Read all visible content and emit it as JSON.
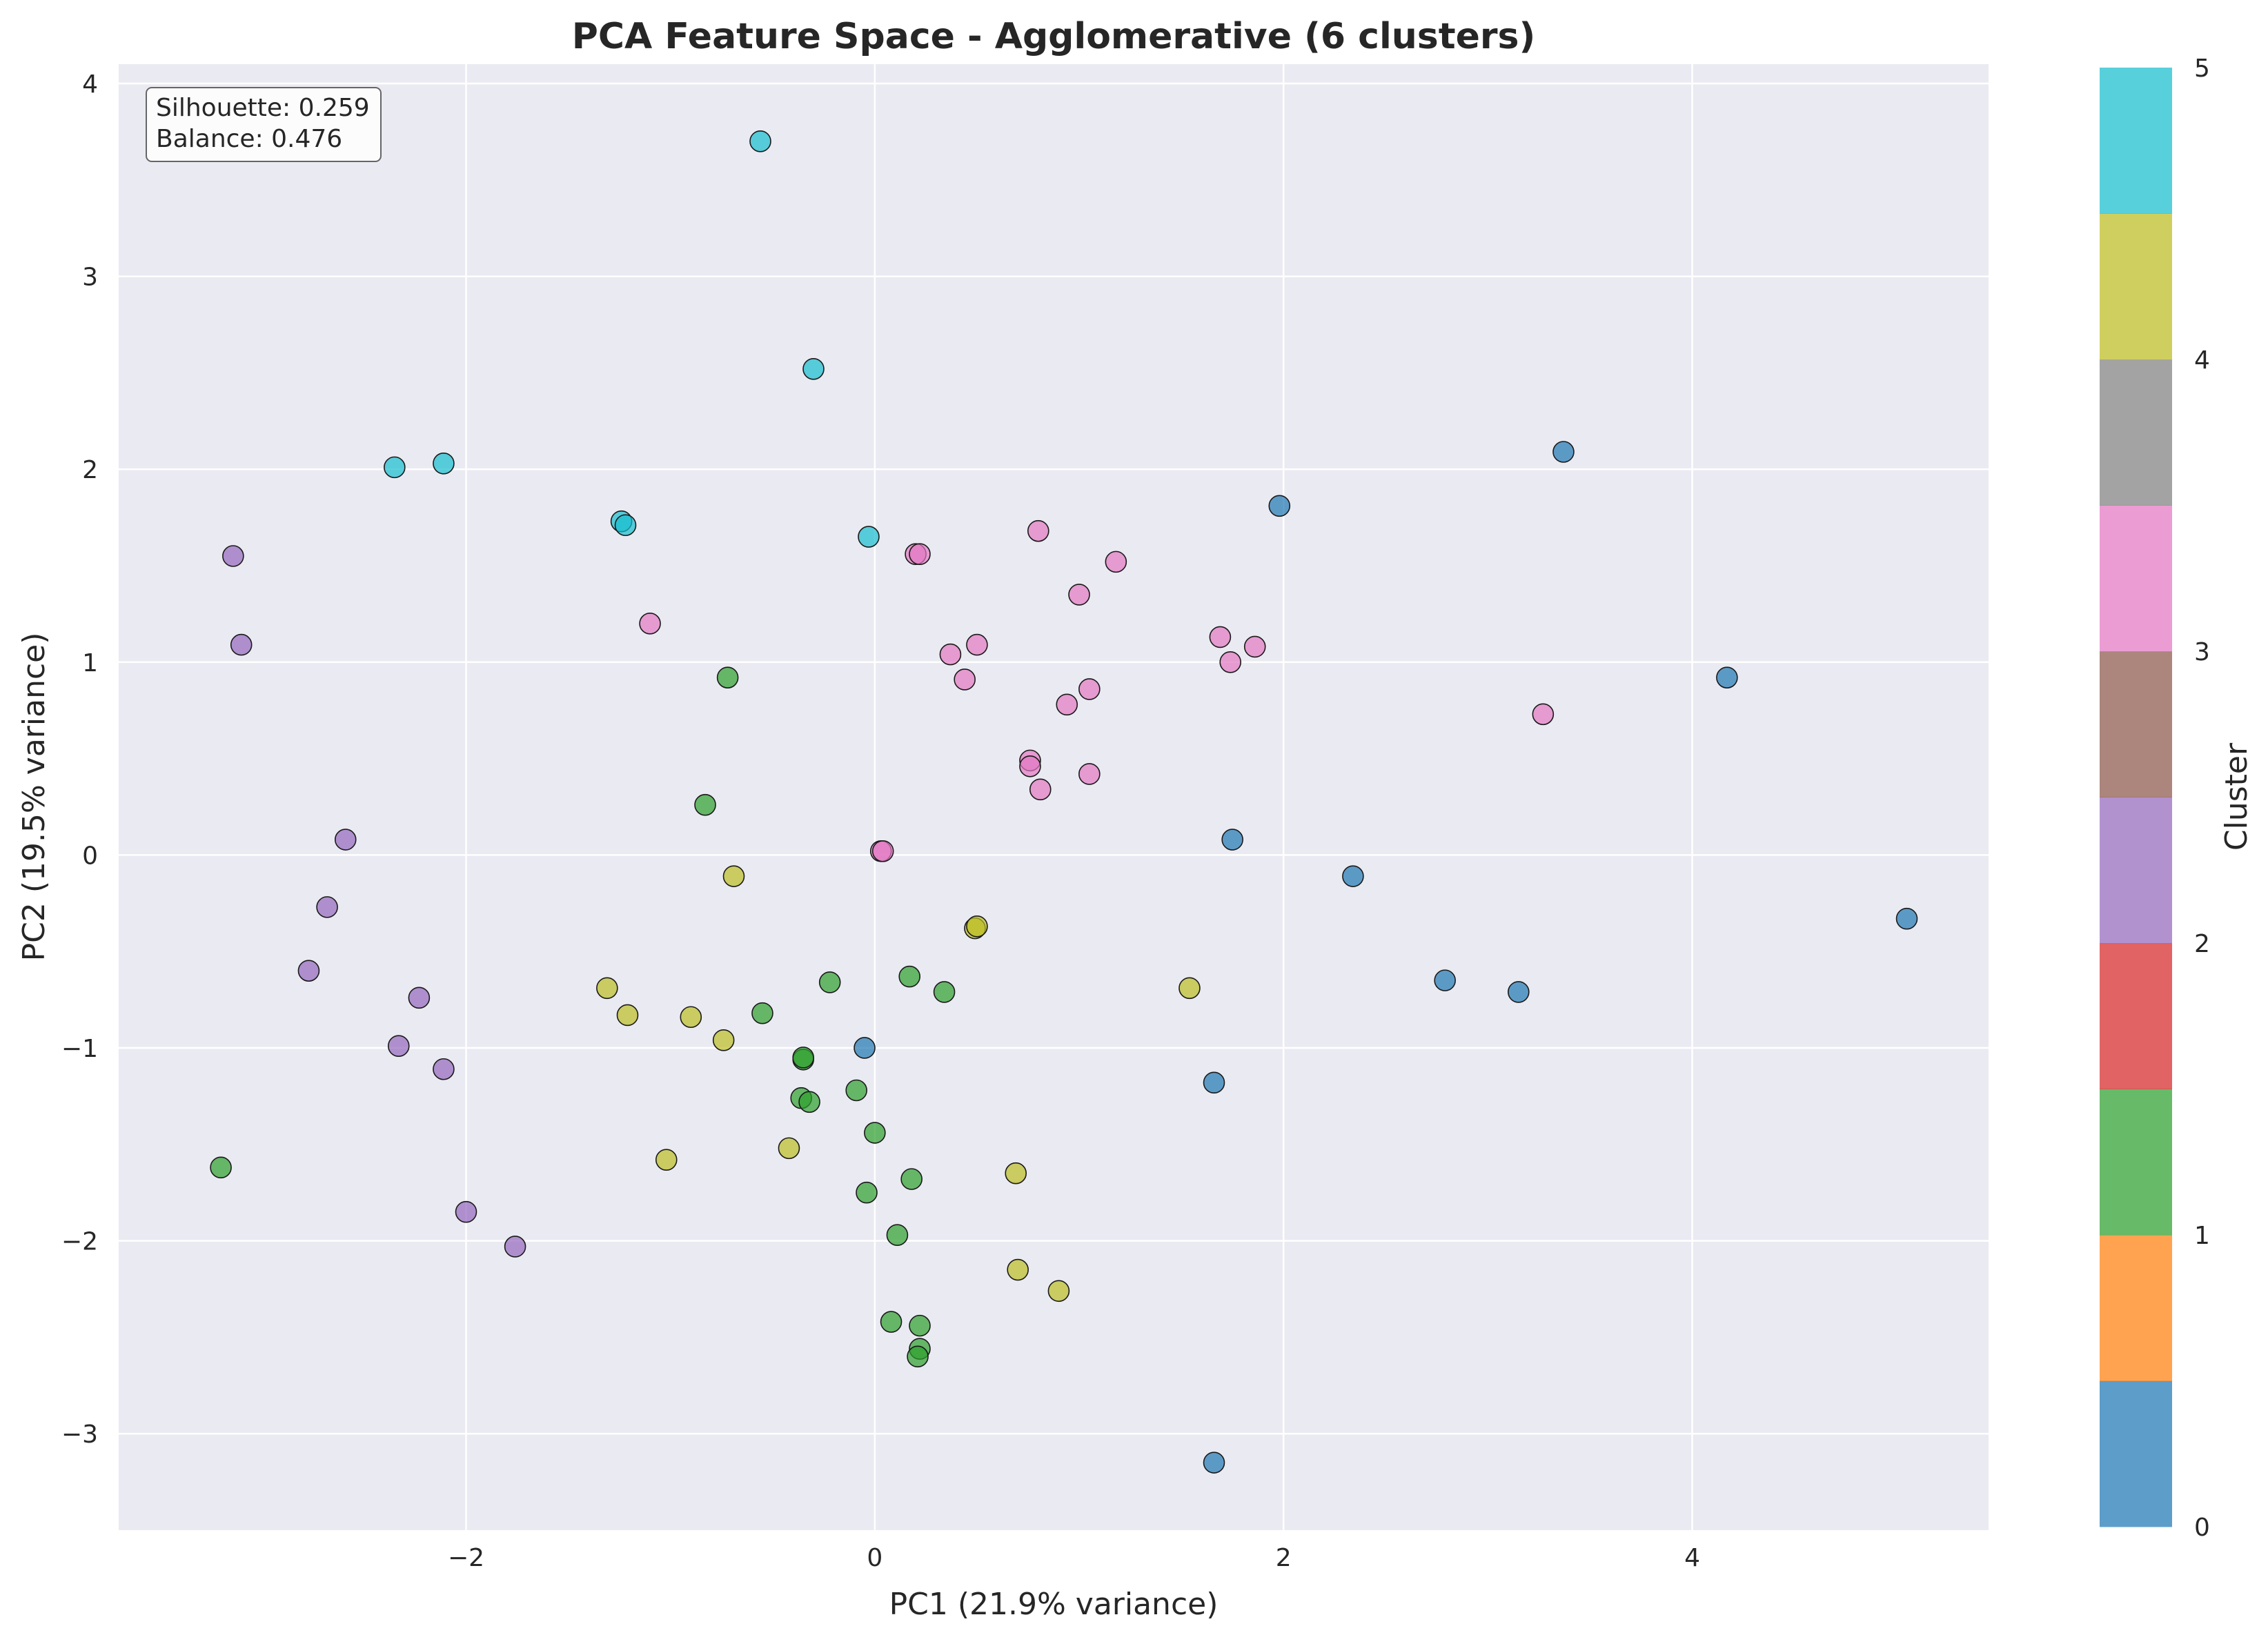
{
  "chart_data": {
    "type": "scatter",
    "title": "PCA Feature Space - Agglomerative (6 clusters)",
    "xlabel": "PC1 (21.9% variance)",
    "ylabel": "PC2 (19.5% variance)",
    "xlim": [
      -3.7,
      5.45
    ],
    "ylim": [
      -3.5,
      4.1
    ],
    "x_ticks": [
      -2,
      0,
      2,
      4
    ],
    "y_ticks": [
      -3,
      -2,
      -1,
      0,
      1,
      2,
      3,
      4
    ],
    "grid": true,
    "annotation": [
      "Silhouette: 0.259",
      "Balance: 0.476"
    ],
    "colorbar": {
      "label": "Cluster",
      "ticks": [
        0,
        1,
        2,
        3,
        4,
        5
      ],
      "colors": [
        "#1f77b4",
        "#ff7f0e",
        "#2ca02c",
        "#d62728",
        "#9467bd",
        "#8c564b",
        "#e377c2",
        "#7f7f7f",
        "#bcbd22",
        "#17becf"
      ]
    },
    "series": [
      {
        "cluster": 0,
        "color": "#1f77b4",
        "x": [
          1.98,
          3.37,
          4.17,
          1.75,
          2.34,
          5.05,
          2.79,
          3.15,
          -0.05,
          1.66,
          1.66
        ],
        "y": [
          1.81,
          2.09,
          0.92,
          0.08,
          -0.11,
          -0.33,
          -0.65,
          -0.71,
          -1.0,
          -1.18,
          -3.15
        ]
      },
      {
        "cluster": 1,
        "color": "#2ca02c",
        "x": [
          -0.72,
          -0.83,
          -0.22,
          0.17,
          0.34,
          -0.55,
          -0.35,
          -0.35,
          -0.36,
          -0.32,
          -0.09,
          0.0,
          0.18,
          -0.04,
          0.11,
          -3.2,
          0.08,
          0.22,
          0.22,
          0.21
        ],
        "y": [
          0.92,
          0.26,
          -0.66,
          -0.63,
          -0.71,
          -0.82,
          -1.06,
          -1.05,
          -1.26,
          -1.28,
          -1.22,
          -1.44,
          -1.68,
          -1.75,
          -1.97,
          -1.62,
          -2.42,
          -2.44,
          -2.56,
          -2.6
        ]
      },
      {
        "cluster": 2,
        "color": "#9467bd",
        "x": [
          -3.14,
          -3.1,
          -2.59,
          -2.68,
          -2.77,
          -2.23,
          -2.33,
          -2.11,
          -2.0,
          -1.76
        ],
        "y": [
          1.55,
          1.09,
          0.08,
          -0.27,
          -0.6,
          -0.74,
          -0.99,
          -1.11,
          -1.85,
          -2.03
        ]
      },
      {
        "cluster": 3,
        "color": "#e377c2",
        "x": [
          0.2,
          0.22,
          0.8,
          1.18,
          1.0,
          -1.1,
          0.37,
          0.5,
          0.44,
          1.69,
          1.86,
          1.74,
          1.05,
          0.94,
          3.27,
          0.76,
          0.76,
          0.81,
          1.05,
          0.03,
          0.04
        ],
        "y": [
          1.56,
          1.56,
          1.68,
          1.52,
          1.35,
          1.2,
          1.04,
          1.09,
          0.91,
          1.13,
          1.08,
          1.0,
          0.86,
          0.78,
          0.73,
          0.49,
          0.46,
          0.34,
          0.42,
          0.02,
          0.02
        ]
      },
      {
        "cluster": 4,
        "color": "#bcbd22",
        "x": [
          -0.69,
          0.49,
          0.5,
          -1.31,
          -1.21,
          -0.9,
          -0.74,
          1.54,
          -0.42,
          -1.02,
          0.69,
          0.7,
          0.9
        ],
        "y": [
          -0.11,
          -0.38,
          -0.37,
          -0.69,
          -0.83,
          -0.84,
          -0.96,
          -0.69,
          -1.52,
          -1.58,
          -1.65,
          -2.15,
          -2.26
        ]
      },
      {
        "cluster": 5,
        "color": "#17becf",
        "x": [
          -0.56,
          -0.3,
          -2.35,
          -2.11,
          -1.24,
          -1.22,
          -0.03
        ],
        "y": [
          3.7,
          2.52,
          2.01,
          2.03,
          1.73,
          1.71,
          1.65
        ]
      }
    ]
  }
}
